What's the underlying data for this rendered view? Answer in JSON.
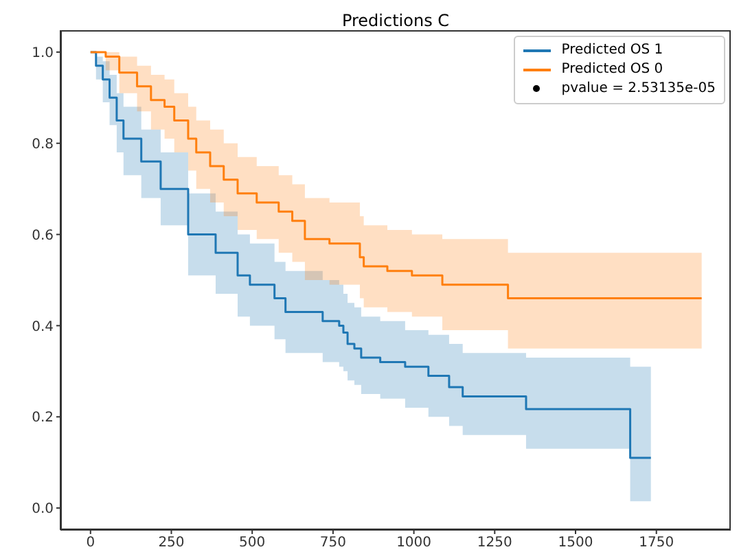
{
  "chart_data": {
    "type": "step",
    "title": "Predictions C",
    "xlim": [
      -93,
      1980
    ],
    "xticks": [
      0,
      250,
      500,
      750,
      1000,
      1250,
      1500,
      1750
    ],
    "ylim": [
      -0.048,
      1.048
    ],
    "yticks": [
      {
        "value": 0,
        "label": "0.0"
      },
      0.2,
      0.4,
      0.6,
      0.8,
      {
        "value": 1,
        "label": "1.0"
      }
    ],
    "legend": "top right",
    "annotations": [
      "pvalue = 2.53135e-05"
    ],
    "series": [
      {
        "name": "Predicted OS 1",
        "color": "#1f77b4",
        "x": [
          0,
          17,
          38,
          59,
          81,
          102,
          157,
          217,
          302,
          387,
          455,
          493,
          569,
          603,
          718,
          769,
          782,
          795,
          816,
          837,
          896,
          973,
          1045,
          1109,
          1151,
          1347,
          1669,
          1733
        ],
        "values": [
          1.0,
          0.97,
          0.94,
          0.9,
          0.85,
          0.81,
          0.76,
          0.7,
          0.6,
          0.56,
          0.51,
          0.49,
          0.46,
          0.43,
          0.41,
          0.4,
          0.385,
          0.36,
          0.35,
          0.33,
          0.32,
          0.31,
          0.29,
          0.265,
          0.245,
          0.217,
          0.11,
          0.11
        ],
        "lower": [
          1.0,
          0.94,
          0.89,
          0.84,
          0.78,
          0.73,
          0.68,
          0.62,
          0.51,
          0.47,
          0.42,
          0.4,
          0.37,
          0.34,
          0.32,
          0.31,
          0.3,
          0.28,
          0.27,
          0.25,
          0.24,
          0.22,
          0.2,
          0.18,
          0.16,
          0.13,
          0.015,
          0.015
        ],
        "upper": [
          1.0,
          0.99,
          0.98,
          0.95,
          0.91,
          0.88,
          0.83,
          0.78,
          0.69,
          0.65,
          0.6,
          0.58,
          0.54,
          0.52,
          0.5,
          0.49,
          0.47,
          0.45,
          0.44,
          0.42,
          0.41,
          0.39,
          0.38,
          0.36,
          0.34,
          0.33,
          0.31,
          0.31
        ]
      },
      {
        "name": "Predicted OS 0",
        "color": "#ff7f0e",
        "x": [
          0,
          47,
          89,
          144,
          187,
          229,
          259,
          302,
          327,
          370,
          412,
          455,
          514,
          582,
          624,
          663,
          739,
          833,
          845,
          918,
          994,
          1088,
          1291,
          1890
        ],
        "values": [
          1.0,
          0.99,
          0.955,
          0.925,
          0.895,
          0.88,
          0.85,
          0.81,
          0.78,
          0.75,
          0.72,
          0.69,
          0.67,
          0.65,
          0.63,
          0.59,
          0.58,
          0.55,
          0.53,
          0.52,
          0.51,
          0.49,
          0.46,
          0.46
        ],
        "lower": [
          1.0,
          0.96,
          0.91,
          0.87,
          0.83,
          0.81,
          0.78,
          0.74,
          0.7,
          0.67,
          0.64,
          0.61,
          0.59,
          0.56,
          0.54,
          0.5,
          0.49,
          0.46,
          0.44,
          0.43,
          0.42,
          0.39,
          0.35,
          0.35
        ],
        "upper": [
          1.0,
          1.0,
          0.99,
          0.97,
          0.95,
          0.94,
          0.91,
          0.88,
          0.85,
          0.83,
          0.8,
          0.77,
          0.75,
          0.73,
          0.71,
          0.68,
          0.67,
          0.64,
          0.62,
          0.61,
          0.6,
          0.59,
          0.56,
          0.56
        ]
      }
    ]
  }
}
